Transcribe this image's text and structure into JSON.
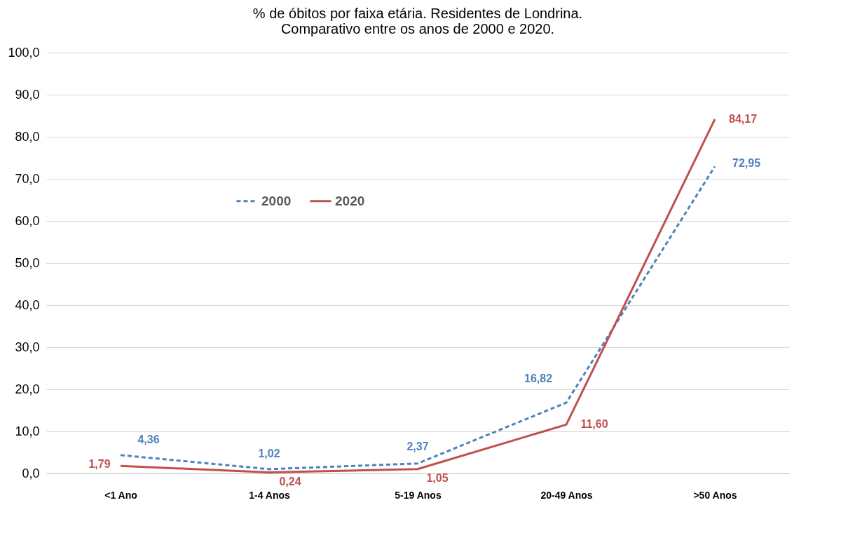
{
  "chart_data": {
    "type": "line",
    "title": "% de óbitos por faixa etária. Residentes de Londrina.\nComparativo entre os anos de 2000 e 2020.",
    "categories": [
      "<1 Ano",
      "1-4 Anos",
      "5-19 Anos",
      "20-49 Anos",
      ">50 Anos"
    ],
    "series": [
      {
        "name": "2000",
        "color": "#4f81bd",
        "line_style": "dashed",
        "values": [
          4.36,
          1.02,
          2.37,
          16.82,
          72.95
        ],
        "value_labels": [
          "4,36",
          "1,02",
          "2,37",
          "16,82",
          "72,95"
        ]
      },
      {
        "name": "2020",
        "color": "#c0504d",
        "line_style": "solid",
        "values": [
          1.79,
          0.24,
          1.05,
          11.6,
          84.17
        ],
        "value_labels": [
          "1,79",
          "0,24",
          "1,05",
          "11,60",
          "84,17"
        ]
      }
    ],
    "ylim": [
      0,
      100
    ],
    "yticks": [
      {
        "value": 0,
        "label": "0,0"
      },
      {
        "value": 10,
        "label": "10,0"
      },
      {
        "value": 20,
        "label": "20,0"
      },
      {
        "value": 30,
        "label": "30,0"
      },
      {
        "value": 40,
        "label": "40,0"
      },
      {
        "value": 50,
        "label": "50,0"
      },
      {
        "value": 60,
        "label": "60,0"
      },
      {
        "value": 70,
        "label": "70,0"
      },
      {
        "value": 80,
        "label": "80,0"
      },
      {
        "value": 90,
        "label": "90,0"
      },
      {
        "value": 100,
        "label": "100,0"
      }
    ],
    "grid": "y",
    "legend": "top left",
    "marker": "none"
  }
}
